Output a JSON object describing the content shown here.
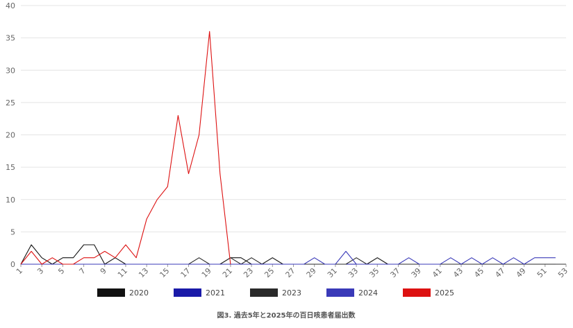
{
  "chart_data": {
    "type": "line",
    "caption": "図3. 過去5年と2025年の百日咳患者届出数",
    "ylim": [
      0,
      40
    ],
    "yticks": [
      0,
      5,
      10,
      15,
      20,
      25,
      30,
      35,
      40
    ],
    "xlim": [
      1,
      53
    ],
    "xtick_labels": [
      "1",
      "3",
      "5",
      "7",
      "9",
      "11",
      "13",
      "15",
      "17",
      "19",
      "21",
      "23",
      "25",
      "27",
      "29",
      "31",
      "33",
      "35",
      "37",
      "39",
      "41",
      "43",
      "45",
      "47",
      "49",
      "51",
      "53"
    ],
    "grid": true,
    "legend_position": "bottom",
    "series": [
      {
        "name": "2020",
        "color": "#111111",
        "x": [
          1,
          2,
          3,
          4,
          5,
          6,
          7,
          8,
          9,
          10,
          11,
          12,
          13,
          14,
          15,
          16,
          17,
          18,
          19,
          20,
          21,
          22,
          23,
          24,
          25,
          26,
          27,
          28,
          29,
          30,
          31,
          32,
          33,
          34,
          35,
          36,
          37,
          38,
          39,
          40,
          41,
          42,
          43,
          44,
          45,
          46,
          47,
          48,
          49,
          50,
          51,
          52
        ],
        "y": [
          0,
          3,
          1,
          0,
          1,
          1,
          3,
          3,
          0,
          1,
          0,
          0,
          0,
          0,
          0,
          0,
          0,
          0,
          0,
          0,
          1,
          1,
          0,
          0,
          1,
          0,
          0,
          0,
          0,
          0,
          0,
          0,
          0,
          0,
          1,
          0,
          0,
          0,
          0,
          0,
          0,
          0,
          0,
          0,
          0,
          0,
          0,
          0,
          0,
          0,
          0,
          0
        ]
      },
      {
        "name": "2021",
        "color": "#1a1aa8",
        "x": [
          1,
          2,
          3,
          4,
          5,
          6,
          7,
          8,
          9,
          10,
          11,
          12,
          13,
          14,
          15,
          16,
          17,
          18,
          19,
          20,
          21,
          22,
          23,
          24,
          25,
          26,
          27,
          28,
          29,
          30,
          31,
          32,
          33,
          34,
          35,
          36,
          37,
          38,
          39,
          40,
          41,
          42,
          43,
          44,
          45,
          46,
          47,
          48,
          49,
          50,
          51,
          52
        ],
        "y": [
          0,
          0,
          0,
          0,
          0,
          0,
          0,
          0,
          0,
          0,
          0,
          0,
          0,
          0,
          0,
          0,
          0,
          0,
          0,
          0,
          0,
          0,
          0,
          0,
          0,
          0,
          0,
          0,
          0,
          0,
          0,
          0,
          0,
          0,
          0,
          0,
          0,
          0,
          0,
          0,
          0,
          0,
          0,
          0,
          0,
          0,
          0,
          0,
          0,
          0,
          0,
          0
        ]
      },
      {
        "name": "2023",
        "color": "#2a2a2a",
        "x": [
          1,
          2,
          3,
          4,
          5,
          6,
          7,
          8,
          9,
          10,
          11,
          12,
          13,
          14,
          15,
          16,
          17,
          18,
          19,
          20,
          21,
          22,
          23,
          24,
          25,
          26,
          27,
          28,
          29,
          30,
          31,
          32,
          33,
          34,
          35,
          36,
          37,
          38,
          39,
          40,
          41,
          42,
          43,
          44,
          45,
          46,
          47,
          48,
          49,
          50,
          51,
          52
        ],
        "y": [
          0,
          0,
          0,
          0,
          0,
          0,
          0,
          0,
          0,
          0,
          0,
          0,
          0,
          0,
          0,
          0,
          0,
          1,
          0,
          0,
          1,
          0,
          1,
          0,
          1,
          0,
          0,
          0,
          0,
          0,
          0,
          0,
          1,
          0,
          1,
          0,
          0,
          0,
          0,
          0,
          0,
          0,
          0,
          0,
          0,
          0,
          0,
          0,
          0,
          0,
          0,
          0
        ]
      },
      {
        "name": "2024",
        "color": "#3a3ab8",
        "x": [
          1,
          2,
          3,
          4,
          5,
          6,
          7,
          8,
          9,
          10,
          11,
          12,
          13,
          14,
          15,
          16,
          17,
          18,
          19,
          20,
          21,
          22,
          23,
          24,
          25,
          26,
          27,
          28,
          29,
          30,
          31,
          32,
          33,
          34,
          35,
          36,
          37,
          38,
          39,
          40,
          41,
          42,
          43,
          44,
          45,
          46,
          47,
          48,
          49,
          50,
          51,
          52
        ],
        "y": [
          0,
          0,
          0,
          0,
          0,
          0,
          0,
          0,
          0,
          0,
          0,
          0,
          0,
          0,
          0,
          0,
          0,
          0,
          0,
          0,
          0,
          0,
          0,
          0,
          0,
          0,
          0,
          0,
          1,
          0,
          0,
          2,
          0,
          0,
          0,
          0,
          0,
          1,
          0,
          0,
          0,
          1,
          0,
          1,
          0,
          1,
          0,
          1,
          0,
          1,
          1,
          1
        ]
      },
      {
        "name": "2025",
        "color": "#dd1111",
        "x": [
          1,
          2,
          3,
          4,
          5,
          6,
          7,
          8,
          9,
          10,
          11,
          12,
          13,
          14,
          15,
          16,
          17,
          18,
          19,
          20,
          21
        ],
        "y": [
          0,
          2,
          0,
          1,
          0,
          0,
          1,
          1,
          2,
          1,
          3,
          1,
          7,
          10,
          12,
          23,
          14,
          20,
          36,
          14,
          0
        ]
      }
    ]
  }
}
